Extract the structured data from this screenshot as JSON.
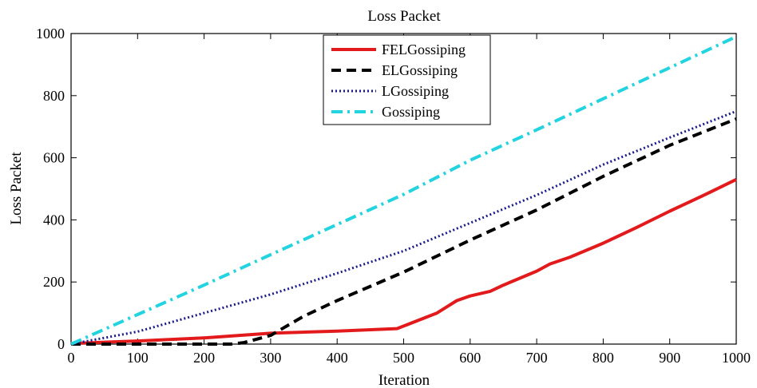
{
  "chart_data": {
    "type": "line",
    "title": "Loss Packet",
    "xlabel": "Iteration",
    "ylabel": "Loss Packet",
    "xlim": [
      0,
      1000
    ],
    "ylim": [
      0,
      1000
    ],
    "xticks": [
      0,
      100,
      200,
      300,
      400,
      500,
      600,
      700,
      800,
      900,
      1000
    ],
    "yticks": [
      0,
      200,
      400,
      600,
      800,
      1000
    ],
    "grid": false,
    "legend_position": "top-center",
    "series": [
      {
        "name": "FELGossiping",
        "color": "#e31a1c",
        "style": "solid",
        "x": [
          0,
          100,
          200,
          300,
          400,
          490,
          500,
          550,
          580,
          600,
          630,
          650,
          700,
          720,
          750,
          800,
          850,
          900,
          950,
          1000
        ],
        "y": [
          2,
          10,
          20,
          35,
          42,
          50,
          58,
          100,
          140,
          155,
          170,
          190,
          235,
          258,
          280,
          325,
          375,
          428,
          478,
          530
        ]
      },
      {
        "name": "ELGossiping",
        "color": "#000000",
        "style": "dashed",
        "x": [
          0,
          100,
          200,
          240,
          260,
          300,
          350,
          400,
          500,
          600,
          700,
          800,
          900,
          1000
        ],
        "y": [
          0,
          0,
          0,
          0,
          5,
          28,
          90,
          140,
          232,
          335,
          432,
          540,
          640,
          725
        ]
      },
      {
        "name": "LGossiping",
        "color": "#1a1a8c",
        "style": "dotted",
        "x": [
          0,
          100,
          200,
          300,
          400,
          500,
          600,
          700,
          800,
          900,
          1000
        ],
        "y": [
          0,
          40,
          100,
          160,
          228,
          300,
          390,
          480,
          578,
          665,
          750
        ]
      },
      {
        "name": "Gossiping",
        "color": "#22d3e0",
        "style": "dashdot",
        "x": [
          0,
          100,
          200,
          300,
          400,
          500,
          600,
          700,
          800,
          900,
          1000
        ],
        "y": [
          0,
          95,
          190,
          288,
          385,
          482,
          592,
          690,
          790,
          890,
          990
        ]
      }
    ]
  }
}
